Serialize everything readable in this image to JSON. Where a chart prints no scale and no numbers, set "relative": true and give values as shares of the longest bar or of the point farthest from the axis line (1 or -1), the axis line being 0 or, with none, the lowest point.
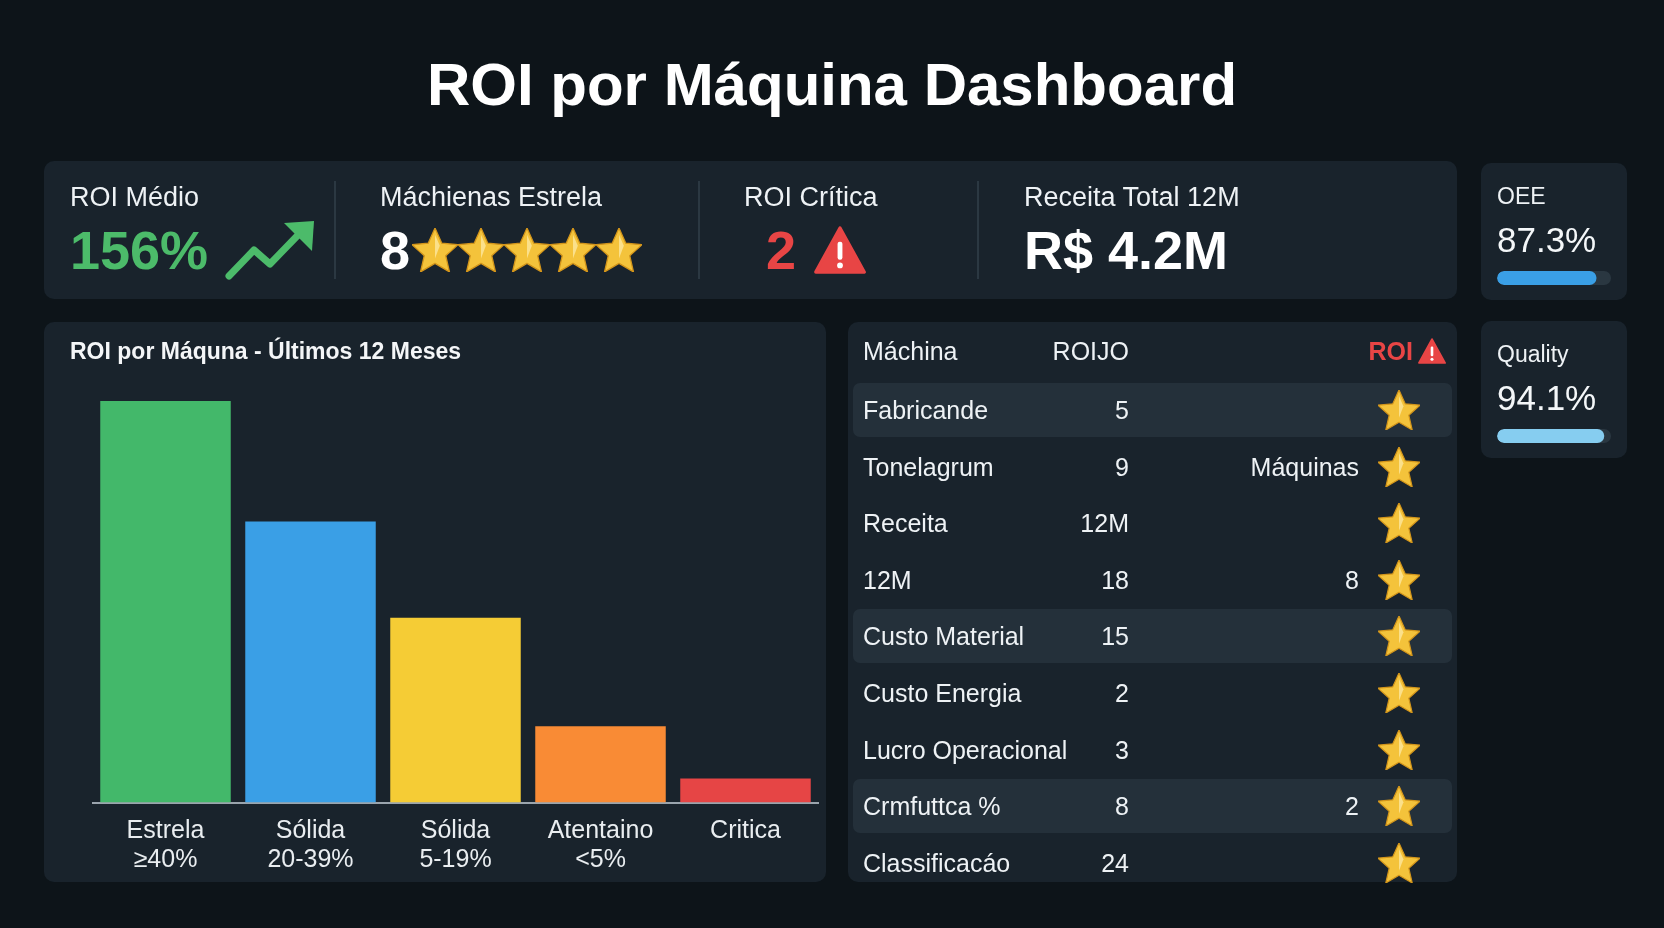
{
  "chart_data": [
    {
      "type": "other",
      "title": "ROI por Máquina Dashboard",
      "categories": [
        "ROI Médio",
        "Máchienas Estrela",
        "ROI Crítica",
        "Receita Total 12M"
      ],
      "value_labels": [
        "156%",
        "8",
        "2",
        "R$ 4.2M"
      ]
    },
    {
      "type": "bar",
      "title": "ROI por Máquna - Últimos 12 Meses",
      "categories": [
        "Estrela\n≥40%",
        "Sólida\n20-39%",
        "Sólida\n5-19%",
        "Atentaino\n<5%",
        "Critica"
      ],
      "values": [
        1,
        0.7,
        0.46,
        0.19,
        0.06
      ],
      "colors": [
        "#43b86a",
        "#3a9fe6",
        "#f5cc35",
        "#f98b35",
        "#e64545"
      ],
      "relative": true
    },
    {
      "type": "other",
      "ylabel": "Máchina",
      "categories": [
        "ROIJO",
        "ROI"
      ],
      "y_categories": [
        "Fabricande",
        "Tonelagrum",
        "Receita",
        "12M",
        "Custo Material",
        "Custo Energia",
        "Lucro Operacional",
        "Crmfuttca %",
        "Classificacáo"
      ],
      "cell_labels": [
        [
          "5",
          null
        ],
        [
          "9",
          "Máquinas"
        ],
        [
          "12M",
          null
        ],
        [
          "18",
          "8"
        ],
        [
          "15",
          null
        ],
        [
          "2",
          null
        ],
        [
          "3",
          null
        ],
        [
          "8",
          "2"
        ],
        [
          "24",
          null
        ]
      ]
    },
    {
      "type": "other",
      "title": "OEE",
      "values": [
        87.3
      ],
      "value_labels": [
        "87.3%"
      ]
    },
    {
      "type": "other",
      "title": "Quality",
      "values": [
        94.1
      ],
      "value_labels": [
        "94.1%"
      ]
    }
  ]
}
